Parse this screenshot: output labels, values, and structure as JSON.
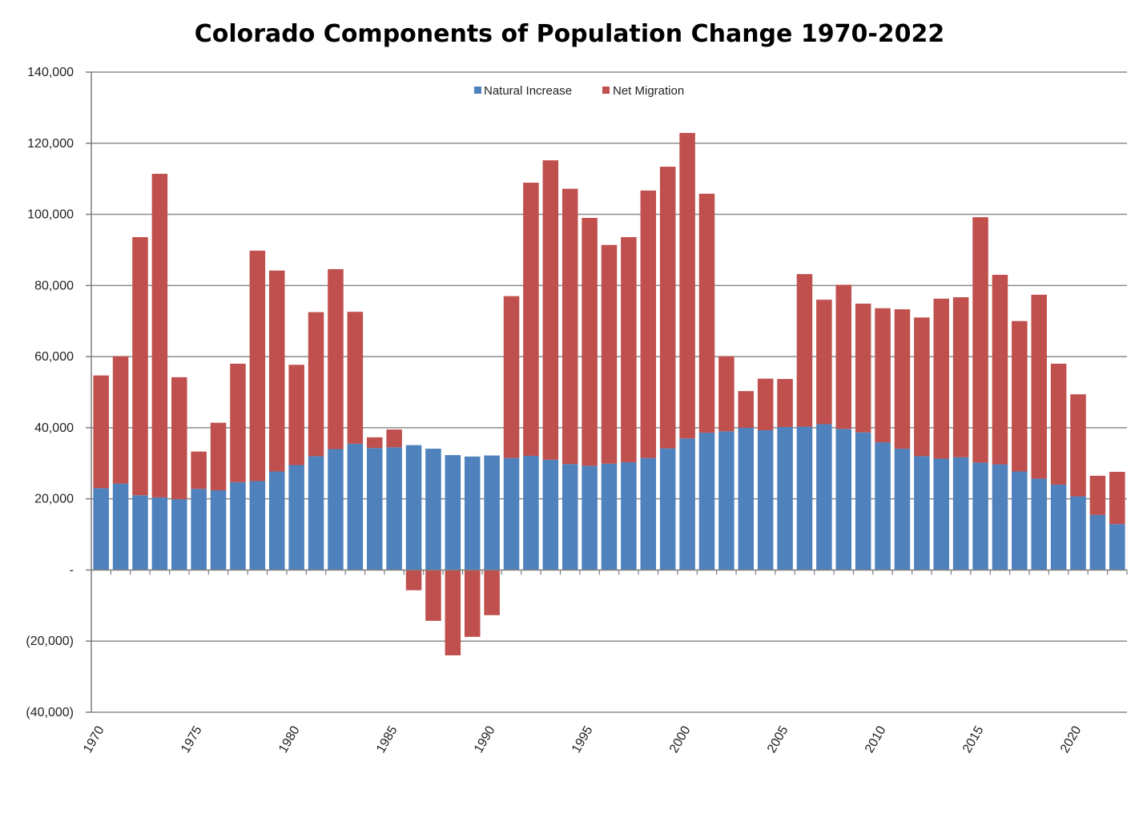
{
  "chart_data": {
    "type": "bar",
    "stacked": true,
    "title": "Colorado Components of Population Change 1970-2022",
    "xlabel": "",
    "ylabel": "",
    "ylim": [
      -40000,
      140000
    ],
    "yticks": [
      {
        "value": 140000,
        "label": "140,000"
      },
      {
        "value": 120000,
        "label": "120,000"
      },
      {
        "value": 100000,
        "label": "100,000"
      },
      {
        "value": 80000,
        "label": "80,000"
      },
      {
        "value": 60000,
        "label": "60,000"
      },
      {
        "value": 40000,
        "label": "40,000"
      },
      {
        "value": 20000,
        "label": "20,000"
      },
      {
        "value": 0,
        "label": "-"
      },
      {
        "value": -20000,
        "label": "(20,000)"
      },
      {
        "value": -40000,
        "label": "(40,000)"
      }
    ],
    "xtick_labels": [
      "1970",
      "1975",
      "1980",
      "1985",
      "1990",
      "1995",
      "2000",
      "2005",
      "2010",
      "2015",
      "2020"
    ],
    "grid": true,
    "legend_position": "top-center",
    "categories": [
      "1970",
      "1971",
      "1972",
      "1973",
      "1974",
      "1975",
      "1976",
      "1977",
      "1978",
      "1979",
      "1980",
      "1981",
      "1982",
      "1983",
      "1984",
      "1985",
      "1986",
      "1987",
      "1988",
      "1989",
      "1990",
      "1991",
      "1992",
      "1993",
      "1994",
      "1995",
      "1996",
      "1997",
      "1998",
      "1999",
      "2000",
      "2001",
      "2002",
      "2003",
      "2004",
      "2005",
      "2006",
      "2007",
      "2008",
      "2009",
      "2010",
      "2011",
      "2012",
      "2013",
      "2014",
      "2015",
      "2016",
      "2017",
      "2018",
      "2019",
      "2020",
      "2021",
      "2022"
    ],
    "series": [
      {
        "name": "Natural Increase",
        "color": "#4F81BD",
        "values": [
          23000,
          24300,
          21000,
          20400,
          19900,
          22800,
          22400,
          24700,
          25000,
          27700,
          29500,
          32000,
          34000,
          35500,
          34300,
          34500,
          35100,
          34100,
          32300,
          31900,
          32200,
          31500,
          32100,
          31000,
          29800,
          29300,
          29900,
          30300,
          31500,
          34200,
          37000,
          38600,
          39000,
          40000,
          39300,
          40200,
          40300,
          41000,
          39700,
          38700,
          35900,
          34100,
          32000,
          31300,
          31700,
          30200,
          29700,
          27700,
          25700,
          24000,
          20700,
          15500,
          12900
        ]
      },
      {
        "name": "Net Migration",
        "color": "#C0504D",
        "values": [
          31700,
          35800,
          72600,
          91000,
          34300,
          10500,
          19000,
          33300,
          64800,
          56500,
          28200,
          40500,
          50600,
          37100,
          3000,
          5000,
          -5700,
          -14300,
          -24000,
          -18800,
          -12700,
          45500,
          76800,
          84200,
          77400,
          69700,
          61500,
          63300,
          75200,
          79200,
          85900,
          67200,
          21100,
          10300,
          14500,
          13500,
          42900,
          35000,
          40500,
          36200,
          37700,
          39200,
          39000,
          45000,
          45000,
          69000,
          53300,
          42300,
          51700,
          34000,
          28700,
          11000,
          14700
        ]
      }
    ]
  }
}
